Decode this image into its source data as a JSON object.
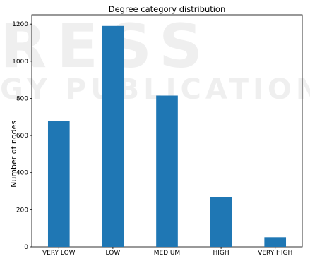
{
  "chart_data": {
    "type": "bar",
    "title": "Degree category distribution",
    "xlabel": "",
    "ylabel": "Number of nodes",
    "categories": [
      "VERY LOW",
      "LOW",
      "MEDIUM",
      "HIGH",
      "VERY HIGH"
    ],
    "values": [
      680,
      1190,
      815,
      268,
      52
    ],
    "ylim": [
      0,
      1250
    ],
    "yticks": [
      0,
      200,
      400,
      600,
      800,
      1000,
      1200
    ],
    "bar_color": "#1f77b4",
    "grid": false,
    "legend": "none"
  },
  "watermark": {
    "line1": "RESS",
    "line2": "GY PUBLICATIONS"
  }
}
